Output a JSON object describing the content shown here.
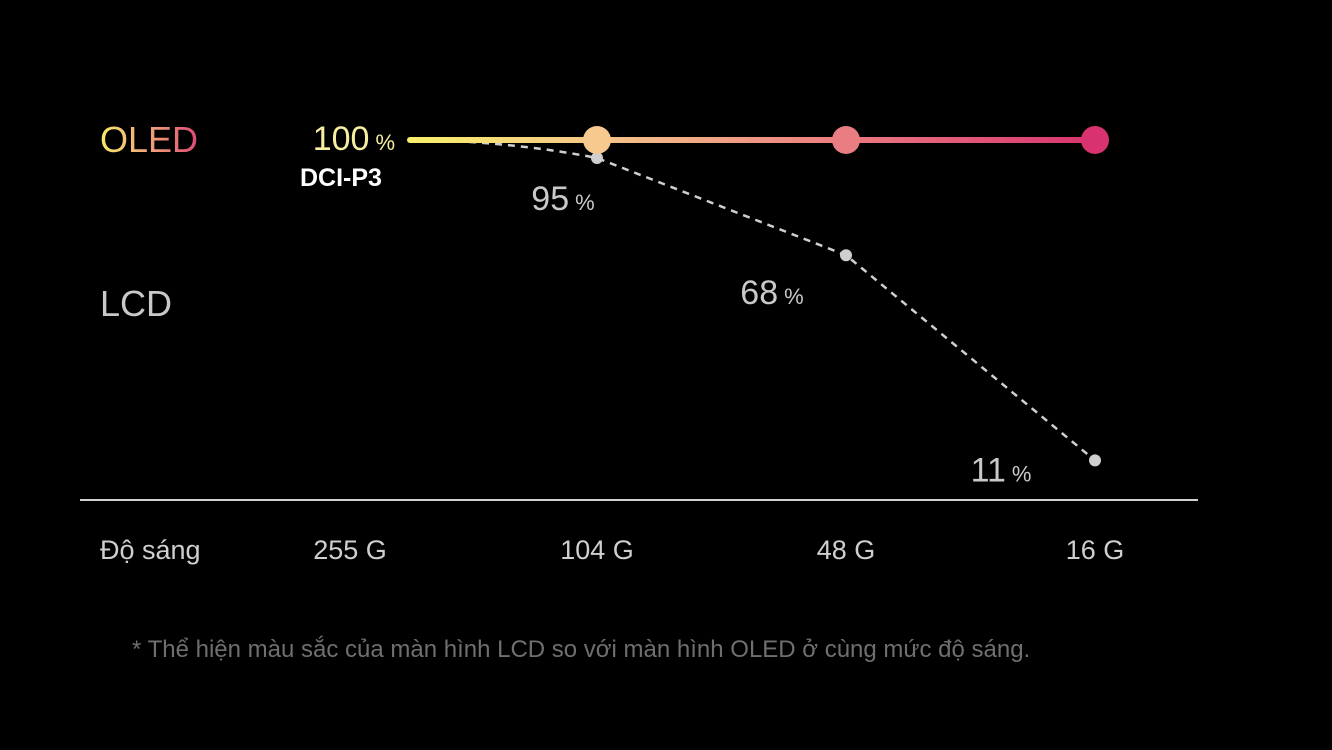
{
  "chart_data": {
    "type": "line",
    "categories": [
      "255 G",
      "104 G",
      "48 G",
      "16 G"
    ],
    "x_axis_label": "Độ sáng",
    "ylim": [
      0,
      100
    ],
    "series": [
      {
        "name": "OLED",
        "values": [
          100,
          100,
          100,
          100
        ],
        "gradient": [
          "#f8f06a",
          "#f5c58a",
          "#ea7a80",
          "#d8336f"
        ],
        "show_labels": false
      },
      {
        "name": "LCD",
        "values": [
          100,
          95,
          68,
          11
        ],
        "color": "#cfcfcf",
        "style": "dashed",
        "show_labels": true
      }
    ],
    "start_label": {
      "value": "100",
      "unit": "%",
      "sublabel": "DCI-P3"
    },
    "value_unit": "%",
    "grid": false
  },
  "footnote": "* Thể hiện màu sắc của màn hình LCD so với màn hình OLED ở cùng mức độ sáng.",
  "colors": {
    "background": "#000000",
    "axis_line": "#cfcfcf",
    "category_text": "#cfcfcf",
    "lcd_label": "#c9c9c9",
    "value_text": "#c9c9c9",
    "oled_start": "#f8f06a",
    "oled_end": "#d8336f"
  }
}
